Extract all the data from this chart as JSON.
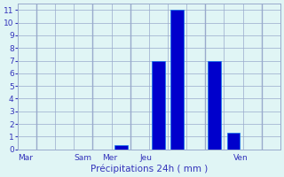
{
  "title": "",
  "xlabel": "Précipitations 24h ( mm )",
  "ylabel": "",
  "ylim": [
    0,
    11.5
  ],
  "yticks": [
    0,
    1,
    2,
    3,
    4,
    5,
    6,
    7,
    8,
    9,
    10,
    11
  ],
  "bar_color": "#0000CC",
  "bar_edge_color": "#1177EE",
  "background_color": "#E0F5F5",
  "grid_color": "#99AACC",
  "text_color": "#3333BB",
  "figsize": [
    3.2,
    2.0
  ],
  "dpi": 100,
  "n_cols": 14,
  "day_separators": [
    1,
    4,
    6,
    10,
    13
  ],
  "bar_x": [
    0,
    5,
    6,
    7,
    8,
    10,
    11,
    13
  ],
  "bar_vals": [
    0.0,
    0.35,
    0.0,
    7.0,
    11.0,
    7.0,
    1.3,
    0.0
  ],
  "day_labels": [
    {
      "label": "Mar",
      "x": 0
    },
    {
      "label": "Sam",
      "x": 3
    },
    {
      "label": "Mer",
      "x": 4.5
    },
    {
      "label": "Jeu",
      "x": 6.5
    },
    {
      "label": "Ven",
      "x": 11.5
    }
  ]
}
